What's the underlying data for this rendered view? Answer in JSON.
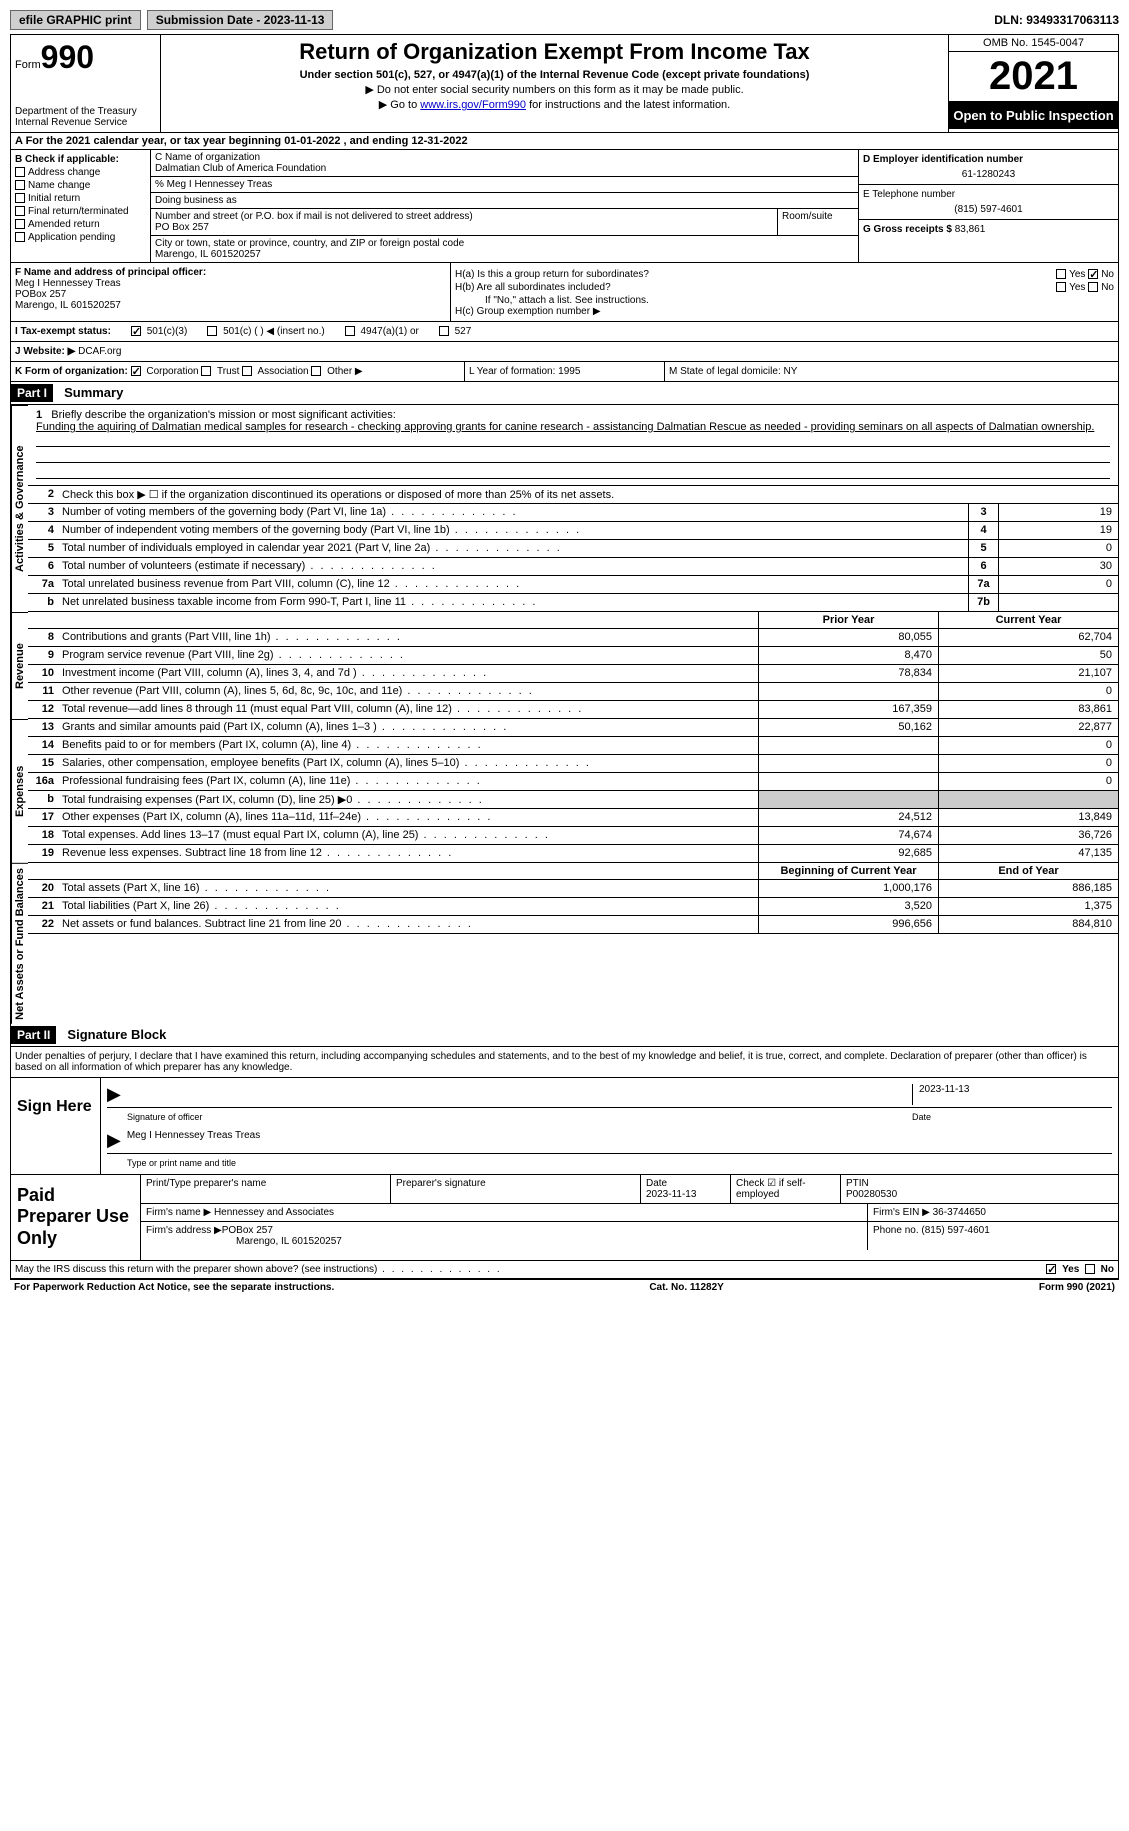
{
  "topbar": {
    "efile_label": "efile GRAPHIC print",
    "submission_label": "Submission Date - 2023-11-13",
    "dln": "DLN: 93493317063113"
  },
  "header": {
    "form_prefix": "Form",
    "form_num": "990",
    "dept": "Department of the Treasury",
    "irs": "Internal Revenue Service",
    "title": "Return of Organization Exempt From Income Tax",
    "subtitle": "Under section 501(c), 527, or 4947(a)(1) of the Internal Revenue Code (except private foundations)",
    "note1": "▶ Do not enter social security numbers on this form as it may be made public.",
    "note2_prefix": "▶ Go to ",
    "note2_link": "www.irs.gov/Form990",
    "note2_suffix": " for instructions and the latest information.",
    "omb": "OMB No. 1545-0047",
    "year": "2021",
    "inspect": "Open to Public Inspection"
  },
  "rowA": "A For the 2021 calendar year, or tax year beginning 01-01-2022   , and ending 12-31-2022",
  "colB": {
    "label": "B Check if applicable:",
    "addr_change": "Address change",
    "name_change": "Name change",
    "initial": "Initial return",
    "final": "Final return/terminated",
    "amended": "Amended return",
    "app_pending": "Application pending"
  },
  "colC": {
    "name_label": "C Name of organization",
    "org_name": "Dalmatian Club of America Foundation",
    "care_of": "% Meg I Hennessey Treas",
    "dba_label": "Doing business as",
    "addr_label": "Number and street (or P.O. box if mail is not delivered to street address)",
    "suite_label": "Room/suite",
    "addr": "PO Box 257",
    "city_label": "City or town, state or province, country, and ZIP or foreign postal code",
    "city": "Marengo, IL  601520257"
  },
  "colD": {
    "ein_label": "D Employer identification number",
    "ein": "61-1280243",
    "phone_label": "E Telephone number",
    "phone": "(815) 597-4601",
    "gross_label": "G Gross receipts $",
    "gross": "83,861"
  },
  "colF": {
    "label": "F Name and address of principal officer:",
    "name": "Meg I Hennessey Treas",
    "addr1": "POBox 257",
    "addr2": "Marengo, IL  601520257"
  },
  "colH": {
    "ha": "H(a)  Is this a group return for subordinates?",
    "hb": "H(b)  Are all subordinates included?",
    "hb_note": "If \"No,\" attach a list. See instructions.",
    "hc": "H(c)  Group exemption number ▶",
    "yes": "Yes",
    "no": "No"
  },
  "statusI": {
    "label": "I  Tax-exempt status:",
    "c3": "501(c)(3)",
    "c": "501(c) (  ) ◀ (insert no.)",
    "a1": "4947(a)(1) or",
    "527": "527"
  },
  "website": {
    "label": "J Website: ▶",
    "url": "DCAF.org"
  },
  "rowK": {
    "label": "K Form of organization:",
    "corp": "Corporation",
    "trust": "Trust",
    "assoc": "Association",
    "other": "Other ▶",
    "year_label": "L Year of formation: 1995",
    "state_label": "M State of legal domicile: NY"
  },
  "part1": {
    "hdr": "Part I",
    "title": "Summary",
    "tab1": "Activities & Governance",
    "tab2": "Revenue",
    "tab3": "Expenses",
    "tab4": "Net Assets or Fund Balances",
    "q1_label": "1",
    "q1_text": "Briefly describe the organization's mission or most significant activities:",
    "q1_mission": "Funding the aquiring of Dalmatian medical samples for research - checking approving grants for canine research - assistancing Dalmatian Rescue as needed - providing seminars on all aspects of Dalmatian ownership.",
    "q2": "Check this box ▶ ☐  if the organization discontinued its operations or disposed of more than 25% of its net assets.",
    "prior_year": "Prior Year",
    "current_year": "Current Year",
    "begin_year": "Beginning of Current Year",
    "end_year": "End of Year",
    "rows_gov": [
      {
        "n": "3",
        "d": "Number of voting members of the governing body (Part VI, line 1a)",
        "box": "3",
        "v": "19"
      },
      {
        "n": "4",
        "d": "Number of independent voting members of the governing body (Part VI, line 1b)",
        "box": "4",
        "v": "19"
      },
      {
        "n": "5",
        "d": "Total number of individuals employed in calendar year 2021 (Part V, line 2a)",
        "box": "5",
        "v": "0"
      },
      {
        "n": "6",
        "d": "Total number of volunteers (estimate if necessary)",
        "box": "6",
        "v": "30"
      },
      {
        "n": "7a",
        "d": "Total unrelated business revenue from Part VIII, column (C), line 12",
        "box": "7a",
        "v": "0"
      },
      {
        "n": "b",
        "d": "Net unrelated business taxable income from Form 990-T, Part I, line 11",
        "box": "7b",
        "v": ""
      }
    ],
    "rows_rev": [
      {
        "n": "8",
        "d": "Contributions and grants (Part VIII, line 1h)",
        "py": "80,055",
        "cy": "62,704"
      },
      {
        "n": "9",
        "d": "Program service revenue (Part VIII, line 2g)",
        "py": "8,470",
        "cy": "50"
      },
      {
        "n": "10",
        "d": "Investment income (Part VIII, column (A), lines 3, 4, and 7d )",
        "py": "78,834",
        "cy": "21,107"
      },
      {
        "n": "11",
        "d": "Other revenue (Part VIII, column (A), lines 5, 6d, 8c, 9c, 10c, and 11e)",
        "py": "",
        "cy": "0"
      },
      {
        "n": "12",
        "d": "Total revenue—add lines 8 through 11 (must equal Part VIII, column (A), line 12)",
        "py": "167,359",
        "cy": "83,861"
      }
    ],
    "rows_exp": [
      {
        "n": "13",
        "d": "Grants and similar amounts paid (Part IX, column (A), lines 1–3 )",
        "py": "50,162",
        "cy": "22,877"
      },
      {
        "n": "14",
        "d": "Benefits paid to or for members (Part IX, column (A), line 4)",
        "py": "",
        "cy": "0"
      },
      {
        "n": "15",
        "d": "Salaries, other compensation, employee benefits (Part IX, column (A), lines 5–10)",
        "py": "",
        "cy": "0"
      },
      {
        "n": "16a",
        "d": "Professional fundraising fees (Part IX, column (A), line 11e)",
        "py": "",
        "cy": "0"
      },
      {
        "n": "b",
        "d": "Total fundraising expenses (Part IX, column (D), line 25) ▶0",
        "py": "shade",
        "cy": "shade"
      },
      {
        "n": "17",
        "d": "Other expenses (Part IX, column (A), lines 11a–11d, 11f–24e)",
        "py": "24,512",
        "cy": "13,849"
      },
      {
        "n": "18",
        "d": "Total expenses. Add lines 13–17 (must equal Part IX, column (A), line 25)",
        "py": "74,674",
        "cy": "36,726"
      },
      {
        "n": "19",
        "d": "Revenue less expenses. Subtract line 18 from line 12",
        "py": "92,685",
        "cy": "47,135"
      }
    ],
    "rows_net": [
      {
        "n": "20",
        "d": "Total assets (Part X, line 16)",
        "py": "1,000,176",
        "cy": "886,185"
      },
      {
        "n": "21",
        "d": "Total liabilities (Part X, line 26)",
        "py": "3,520",
        "cy": "1,375"
      },
      {
        "n": "22",
        "d": "Net assets or fund balances. Subtract line 21 from line 20",
        "py": "996,656",
        "cy": "884,810"
      }
    ]
  },
  "part2": {
    "hdr": "Part II",
    "title": "Signature Block",
    "declaration": "Under penalties of perjury, I declare that I have examined this return, including accompanying schedules and statements, and to the best of my knowledge and belief, it is true, correct, and complete. Declaration of preparer (other than officer) is based on all information of which preparer has any knowledge.",
    "sign_here": "Sign Here",
    "sig_officer": "Signature of officer",
    "sig_date": "2023-11-13",
    "date_label": "Date",
    "officer_name": "Meg I Hennessey Treas  Treas",
    "name_title_label": "Type or print name and title",
    "paid_prep": "Paid Preparer Use Only",
    "prep_name_label": "Print/Type preparer's name",
    "prep_sig_label": "Preparer's signature",
    "prep_date_label": "Date",
    "prep_date": "2023-11-13",
    "check_if": "Check ☑ if self-employed",
    "ptin_label": "PTIN",
    "ptin": "P00280530",
    "firm_name_label": "Firm's name      ▶",
    "firm_name": "Hennessey and Associates",
    "firm_ein_label": "Firm's EIN ▶",
    "firm_ein": "36-3744650",
    "firm_addr_label": "Firm's address ▶",
    "firm_addr1": "POBox 257",
    "firm_addr2": "Marengo, IL  601520257",
    "firm_phone_label": "Phone no.",
    "firm_phone": "(815) 597-4601",
    "discuss": "May the IRS discuss this return with the preparer shown above? (see instructions)",
    "paperwork": "For Paperwork Reduction Act Notice, see the separate instructions.",
    "catno": "Cat. No. 11282Y",
    "formfoot": "Form 990 (2021)"
  }
}
